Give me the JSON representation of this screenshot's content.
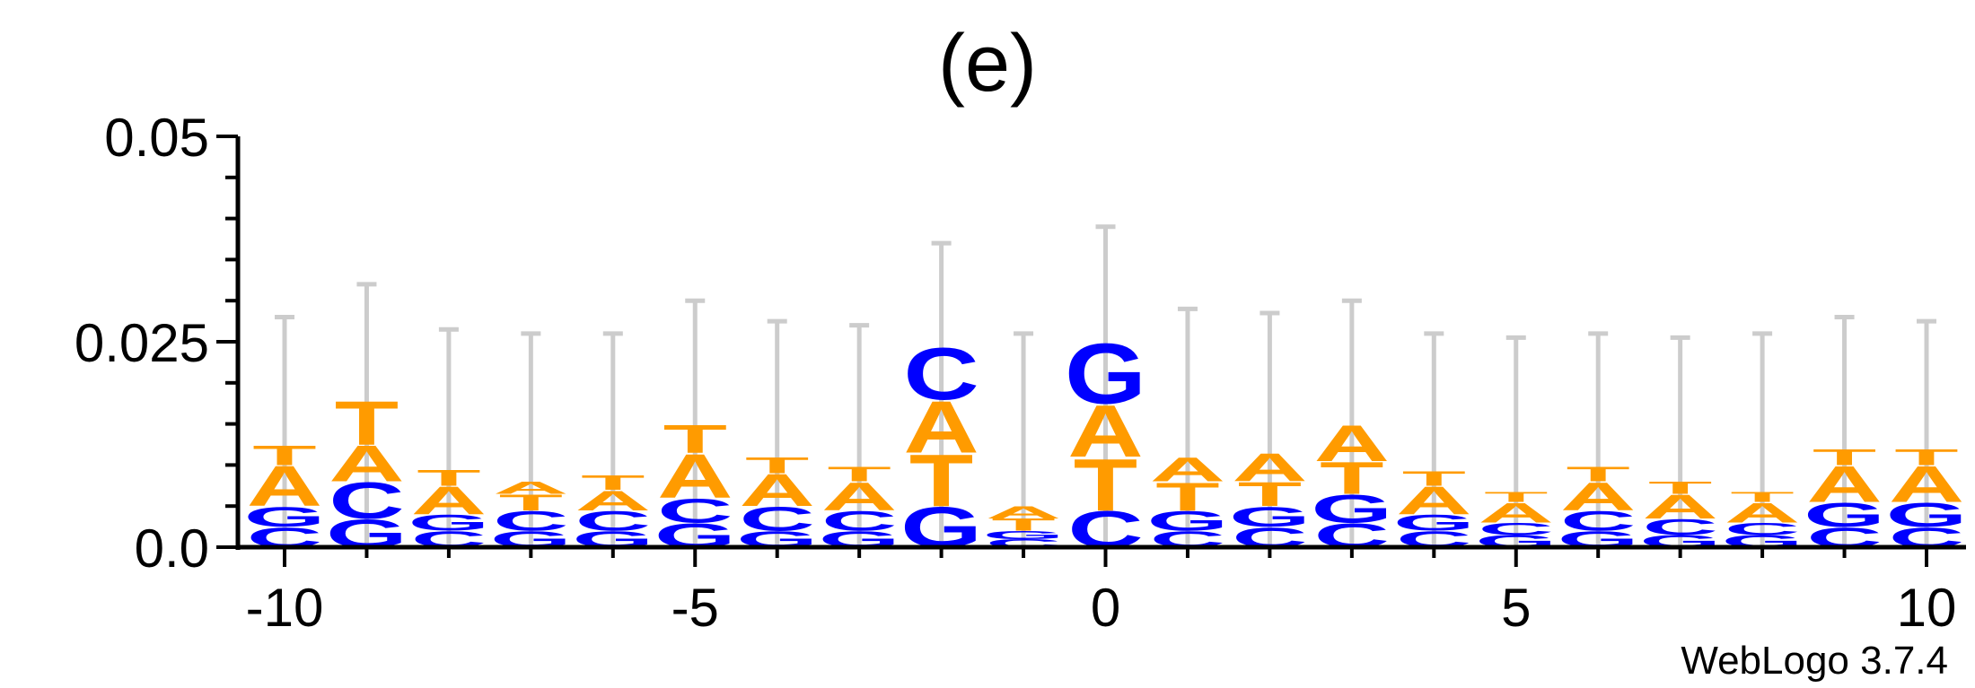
{
  "title": "(e)",
  "footer": "WebLogo 3.7.4",
  "colors": {
    "A": "#ff9b00",
    "T": "#ff9b00",
    "C": "#0000ff",
    "G": "#0000ff",
    "error_bar": "#cccccc",
    "axis": "#000000"
  },
  "chart_data": {
    "type": "sequence_logo",
    "xlim": [
      -10,
      10
    ],
    "ylim": [
      0,
      0.05
    ],
    "y_ticks": [
      "0.0",
      "0.025",
      "0.05"
    ],
    "x_ticks": [
      "-10",
      "-5",
      "0",
      "5",
      "10"
    ],
    "positions": [
      {
        "x": -10,
        "error_top": 0.028,
        "stack": [
          {
            "letter": "C",
            "h": 0.0025
          },
          {
            "letter": "G",
            "h": 0.0025
          },
          {
            "letter": "A",
            "h": 0.005
          },
          {
            "letter": "T",
            "h": 0.0025
          }
        ]
      },
      {
        "x": -9,
        "error_top": 0.032,
        "stack": [
          {
            "letter": "G",
            "h": 0.0035
          },
          {
            "letter": "C",
            "h": 0.0045
          },
          {
            "letter": "A",
            "h": 0.0045
          },
          {
            "letter": "T",
            "h": 0.0055
          }
        ]
      },
      {
        "x": -8,
        "error_top": 0.0265,
        "stack": [
          {
            "letter": "C",
            "h": 0.002
          },
          {
            "letter": "G",
            "h": 0.002
          },
          {
            "letter": "A",
            "h": 0.0035
          },
          {
            "letter": "T",
            "h": 0.002
          }
        ]
      },
      {
        "x": -7,
        "error_top": 0.026,
        "stack": [
          {
            "letter": "G",
            "h": 0.002
          },
          {
            "letter": "C",
            "h": 0.0025
          },
          {
            "letter": "T",
            "h": 0.002
          },
          {
            "letter": "A",
            "h": 0.0015
          }
        ]
      },
      {
        "x": -6,
        "error_top": 0.026,
        "stack": [
          {
            "letter": "G",
            "h": 0.002
          },
          {
            "letter": "C",
            "h": 0.0025
          },
          {
            "letter": "A",
            "h": 0.0025
          },
          {
            "letter": "T",
            "h": 0.0018
          }
        ]
      },
      {
        "x": -5,
        "error_top": 0.03,
        "stack": [
          {
            "letter": "G",
            "h": 0.003
          },
          {
            "letter": "C",
            "h": 0.003
          },
          {
            "letter": "A",
            "h": 0.0055
          },
          {
            "letter": "T",
            "h": 0.0035
          }
        ]
      },
      {
        "x": -4,
        "error_top": 0.0275,
        "stack": [
          {
            "letter": "G",
            "h": 0.002
          },
          {
            "letter": "C",
            "h": 0.003
          },
          {
            "letter": "A",
            "h": 0.004
          },
          {
            "letter": "T",
            "h": 0.002
          }
        ]
      },
      {
        "x": -3,
        "error_top": 0.027,
        "stack": [
          {
            "letter": "G",
            "h": 0.002
          },
          {
            "letter": "C",
            "h": 0.0025
          },
          {
            "letter": "A",
            "h": 0.0035
          },
          {
            "letter": "T",
            "h": 0.0018
          }
        ]
      },
      {
        "x": -2,
        "error_top": 0.037,
        "stack": [
          {
            "letter": "G",
            "h": 0.005
          },
          {
            "letter": "T",
            "h": 0.0065
          },
          {
            "letter": "A",
            "h": 0.0065
          },
          {
            "letter": "C",
            "h": 0.0065
          }
        ]
      },
      {
        "x": -1,
        "error_top": 0.026,
        "stack": [
          {
            "letter": "C",
            "h": 0.001
          },
          {
            "letter": "G",
            "h": 0.001
          },
          {
            "letter": "T",
            "h": 0.0015
          },
          {
            "letter": "A",
            "h": 0.0015
          }
        ]
      },
      {
        "x": 0,
        "error_top": 0.039,
        "stack": [
          {
            "letter": "C",
            "h": 0.0045
          },
          {
            "letter": "T",
            "h": 0.0065
          },
          {
            "letter": "A",
            "h": 0.0065
          },
          {
            "letter": "G",
            "h": 0.0075
          }
        ]
      },
      {
        "x": 1,
        "error_top": 0.029,
        "stack": [
          {
            "letter": "C",
            "h": 0.002
          },
          {
            "letter": "G",
            "h": 0.0025
          },
          {
            "letter": "T",
            "h": 0.0035
          },
          {
            "letter": "A",
            "h": 0.003
          }
        ]
      },
      {
        "x": 2,
        "error_top": 0.0285,
        "stack": [
          {
            "letter": "C",
            "h": 0.0025
          },
          {
            "letter": "G",
            "h": 0.0025
          },
          {
            "letter": "T",
            "h": 0.003
          },
          {
            "letter": "A",
            "h": 0.0035
          }
        ]
      },
      {
        "x": 3,
        "error_top": 0.03,
        "stack": [
          {
            "letter": "C",
            "h": 0.003
          },
          {
            "letter": "G",
            "h": 0.0035
          },
          {
            "letter": "T",
            "h": 0.004
          },
          {
            "letter": "A",
            "h": 0.0045
          }
        ]
      },
      {
        "x": 4,
        "error_top": 0.026,
        "stack": [
          {
            "letter": "C",
            "h": 0.002
          },
          {
            "letter": "G",
            "h": 0.002
          },
          {
            "letter": "A",
            "h": 0.0035
          },
          {
            "letter": "T",
            "h": 0.0018
          }
        ]
      },
      {
        "x": 5,
        "error_top": 0.0255,
        "stack": [
          {
            "letter": "G",
            "h": 0.0015
          },
          {
            "letter": "C",
            "h": 0.0015
          },
          {
            "letter": "A",
            "h": 0.0025
          },
          {
            "letter": "T",
            "h": 0.0012
          }
        ]
      },
      {
        "x": 6,
        "error_top": 0.026,
        "stack": [
          {
            "letter": "G",
            "h": 0.002
          },
          {
            "letter": "C",
            "h": 0.0025
          },
          {
            "letter": "A",
            "h": 0.0035
          },
          {
            "letter": "T",
            "h": 0.0018
          }
        ]
      },
      {
        "x": 7,
        "error_top": 0.0255,
        "stack": [
          {
            "letter": "G",
            "h": 0.0015
          },
          {
            "letter": "C",
            "h": 0.002
          },
          {
            "letter": "A",
            "h": 0.003
          },
          {
            "letter": "T",
            "h": 0.0015
          }
        ]
      },
      {
        "x": 8,
        "error_top": 0.026,
        "stack": [
          {
            "letter": "G",
            "h": 0.0015
          },
          {
            "letter": "C",
            "h": 0.0015
          },
          {
            "letter": "A",
            "h": 0.0025
          },
          {
            "letter": "T",
            "h": 0.0012
          }
        ]
      },
      {
        "x": 9,
        "error_top": 0.028,
        "stack": [
          {
            "letter": "C",
            "h": 0.0025
          },
          {
            "letter": "G",
            "h": 0.003
          },
          {
            "letter": "A",
            "h": 0.0045
          },
          {
            "letter": "T",
            "h": 0.002
          }
        ]
      },
      {
        "x": 10,
        "error_top": 0.0275,
        "stack": [
          {
            "letter": "C",
            "h": 0.0025
          },
          {
            "letter": "G",
            "h": 0.003
          },
          {
            "letter": "A",
            "h": 0.0045
          },
          {
            "letter": "T",
            "h": 0.002
          }
        ]
      }
    ]
  }
}
